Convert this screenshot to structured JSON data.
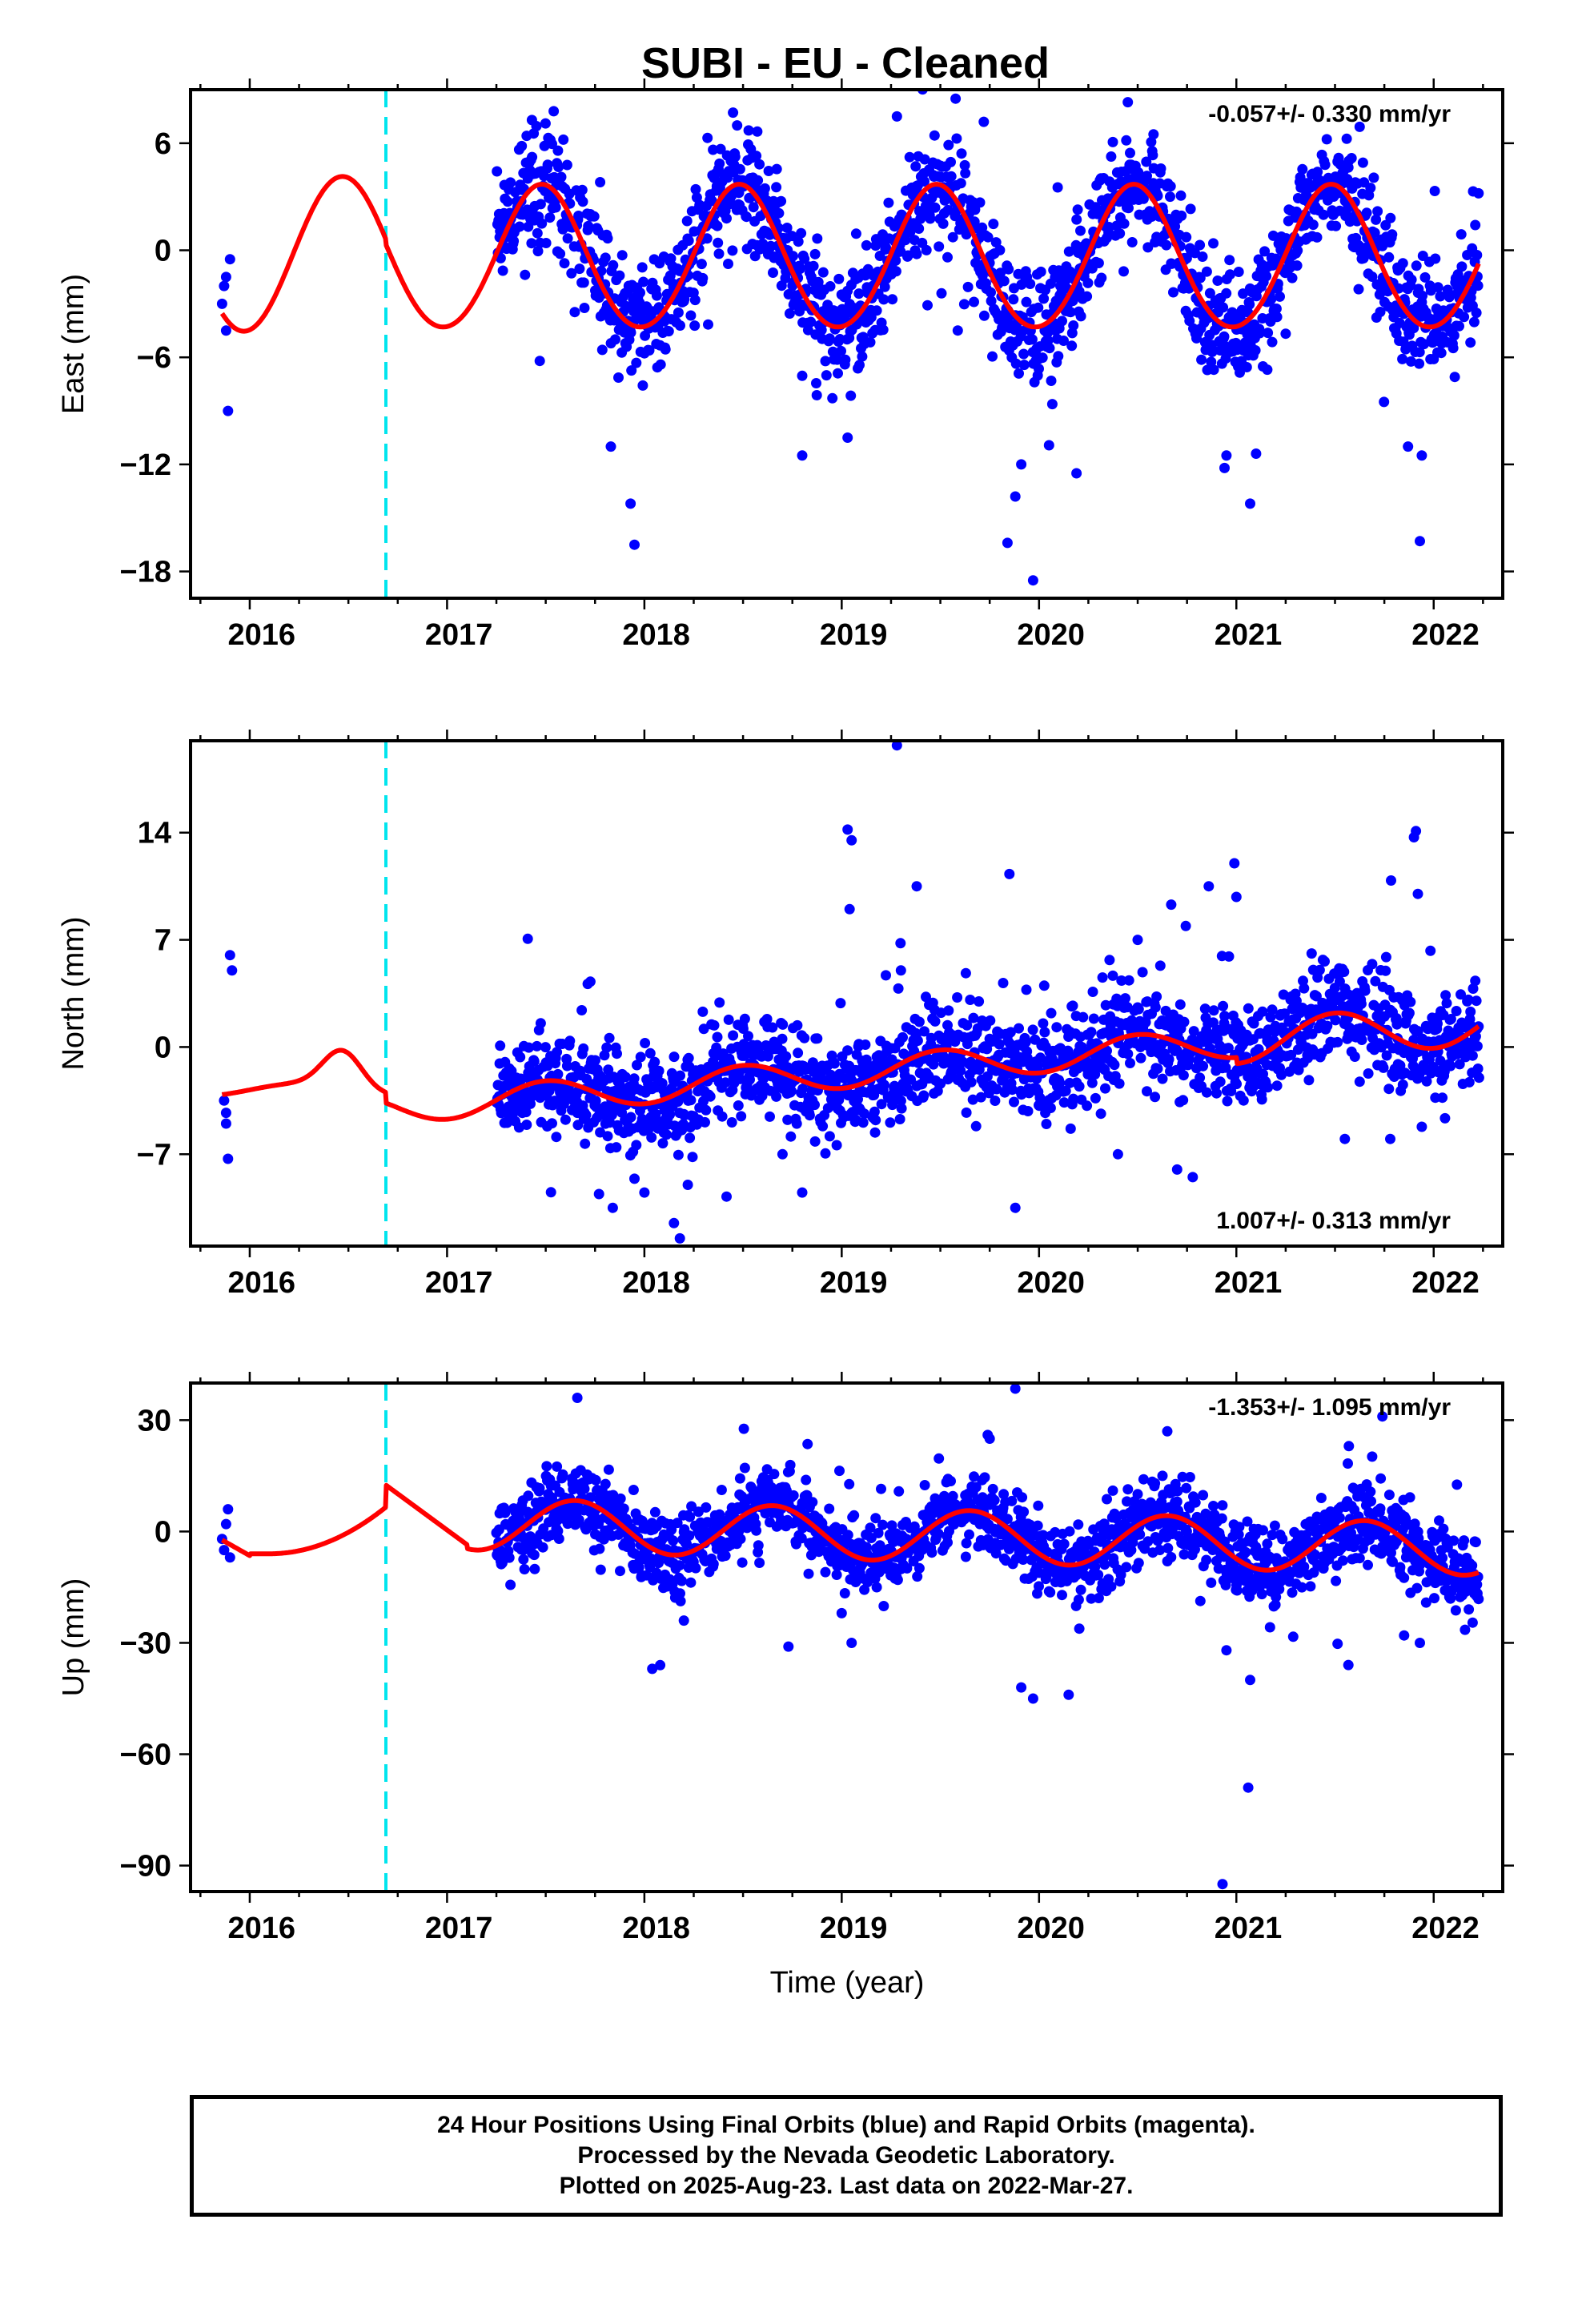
{
  "title": "SUBI  - EU - Cleaned",
  "xlabel": "Time (year)",
  "caption": [
    "24 Hour Positions Using Final Orbits (blue) and Rapid Orbits (magenta).",
    "Processed by the Nevada Geodetic Laboratory.",
    "Plotted on 2025-Aug-23. Last data on 2022-Mar-27."
  ],
  "colors": {
    "points": "#0000ff",
    "model": "#ff0000",
    "event": "#00e5ee",
    "frame": "#000000"
  },
  "chart_data": [
    {
      "type": "scatter",
      "panel": "east",
      "ylabel": "East (mm)",
      "rate_text": "-0.057+/- 0.330 mm/yr",
      "rate_placement": "top-right",
      "xlim": [
        2015.7,
        2022.35
      ],
      "ylim": [
        -19.5,
        9.0
      ],
      "xticks": [
        "2016",
        "2017",
        "2018",
        "2019",
        "2020",
        "2021",
        "2022"
      ],
      "yticks": [
        6,
        0,
        -6,
        -12,
        -18
      ],
      "ytick_labels": [
        "6",
        "0",
        "−6",
        "−12",
        "−18"
      ],
      "event_line_x": 2016.69,
      "data_start": 2017.25,
      "data_end": 2022.23,
      "model": {
        "offset": -0.5,
        "annual_amp": 4.0,
        "annual_phase_peak": 2017.48,
        "pre_amp": 5.1,
        "pre_peak": 2016.47,
        "noise_sd": 1.6
      },
      "points": [
        [
          2015.86,
          -3.0
        ],
        [
          2015.87,
          -2.0
        ],
        [
          2015.88,
          -4.5
        ],
        [
          2015.89,
          -9.0
        ],
        [
          2015.9,
          -0.5
        ],
        [
          2015.88,
          -1.5
        ],
        [
          2017.83,
          -11.0
        ],
        [
          2017.93,
          -14.2
        ],
        [
          2017.95,
          -16.5
        ],
        [
          2018.8,
          -11.5
        ],
        [
          2019.03,
          -10.5
        ],
        [
          2019.28,
          7.5
        ],
        [
          2019.72,
          7.2
        ],
        [
          2019.84,
          -16.4
        ],
        [
          2019.88,
          -13.8
        ],
        [
          2019.91,
          -12.0
        ],
        [
          2019.97,
          -18.5
        ],
        [
          2020.19,
          -12.5
        ],
        [
          2020.45,
          8.3
        ],
        [
          2020.58,
          6.5
        ],
        [
          2020.94,
          -12.2
        ],
        [
          2020.95,
          -11.5
        ],
        [
          2021.07,
          -14.2
        ],
        [
          2021.1,
          -11.4
        ],
        [
          2021.87,
          -11.0
        ],
        [
          2021.93,
          -16.3
        ],
        [
          2021.94,
          -11.5
        ],
        [
          2022.2,
          3.3
        ],
        [
          2017.43,
          7.3
        ],
        [
          2018.32,
          6.3
        ],
        [
          2018.47,
          7.0
        ],
        [
          2017.47,
          -6.2
        ]
      ]
    },
    {
      "type": "scatter",
      "panel": "north",
      "ylabel": "North (mm)",
      "rate_text": "1.007+/- 0.313 mm/yr",
      "rate_placement": "bottom-right",
      "xlim": [
        2015.7,
        2022.35
      ],
      "ylim": [
        -13.0,
        20.0
      ],
      "xticks": [
        "2016",
        "2017",
        "2018",
        "2019",
        "2020",
        "2021",
        "2022"
      ],
      "yticks": [
        14,
        7,
        0,
        -7
      ],
      "ytick_labels": [
        "14",
        "7",
        "0",
        "−7"
      ],
      "event_line_x": 2016.69,
      "data_start": 2017.25,
      "data_end": 2022.23,
      "model": {
        "rate": 1.007,
        "base_at_2019": -1.5,
        "annual_amp": 1.0,
        "annual_phase_peak": 2017.5,
        "pre_amp": 2.0,
        "pre_peak": 2016.47,
        "pre_base": -2.8,
        "noise_sd": 1.6
      },
      "points": [
        [
          2015.87,
          -3.5
        ],
        [
          2015.88,
          -5.0
        ],
        [
          2015.89,
          -7.3
        ],
        [
          2015.9,
          6.0
        ],
        [
          2015.91,
          5.0
        ],
        [
          2015.88,
          -4.3
        ],
        [
          2017.77,
          -9.6
        ],
        [
          2017.84,
          -10.5
        ],
        [
          2017.95,
          -8.6
        ],
        [
          2018.0,
          -9.5
        ],
        [
          2018.15,
          -11.5
        ],
        [
          2018.18,
          -12.5
        ],
        [
          2018.22,
          -9.0
        ],
        [
          2018.7,
          -7.0
        ],
        [
          2018.8,
          -9.5
        ],
        [
          2019.03,
          14.2
        ],
        [
          2019.05,
          13.5
        ],
        [
          2019.04,
          9.0
        ],
        [
          2019.28,
          19.7
        ],
        [
          2019.38,
          10.5
        ],
        [
          2019.85,
          11.3
        ],
        [
          2019.88,
          -10.5
        ],
        [
          2020.5,
          7.0
        ],
        [
          2020.67,
          9.3
        ],
        [
          2020.86,
          10.5
        ],
        [
          2020.99,
          12.0
        ],
        [
          2021.0,
          9.8
        ],
        [
          2021.55,
          -6.0
        ],
        [
          2021.78,
          -6.0
        ],
        [
          2021.9,
          13.7
        ],
        [
          2021.91,
          14.1
        ],
        [
          2021.92,
          10.0
        ],
        [
          2022.23,
          -2.0
        ],
        [
          2019.3,
          5.0
        ],
        [
          2020.4,
          -7.0
        ],
        [
          2020.7,
          -8.0
        ]
      ]
    },
    {
      "type": "scatter",
      "panel": "up",
      "ylabel": "Up (mm)",
      "rate_text": "-1.353+/- 1.095 mm/yr",
      "rate_placement": "top-right",
      "xlim": [
        2015.7,
        2022.35
      ],
      "ylim": [
        -97,
        40
      ],
      "xticks": [
        "2016",
        "2017",
        "2018",
        "2019",
        "2020",
        "2021",
        "2022"
      ],
      "yticks": [
        30,
        0,
        -30,
        -60,
        -90
      ],
      "ytick_labels": [
        "30",
        "0",
        "−30",
        "−60",
        "−90"
      ],
      "event_line_x": 2016.69,
      "data_start": 2017.25,
      "data_end": 2022.23,
      "model": {
        "rate": -1.353,
        "base_at_2019": 2.5,
        "annual_amp": 7.0,
        "annual_phase_peak": 2017.65,
        "pre_jump": 12.5,
        "noise_sd": 5.0
      },
      "points": [
        [
          2015.86,
          -2.0
        ],
        [
          2015.87,
          -5.0
        ],
        [
          2015.89,
          6.0
        ],
        [
          2015.9,
          -7.0
        ],
        [
          2015.88,
          2.0
        ],
        [
          2017.66,
          36.0
        ],
        [
          2018.04,
          -37.0
        ],
        [
          2018.08,
          -36.0
        ],
        [
          2018.73,
          -31.0
        ],
        [
          2019.05,
          -30.0
        ],
        [
          2019.74,
          26.0
        ],
        [
          2019.75,
          25.0
        ],
        [
          2019.88,
          38.5
        ],
        [
          2019.91,
          -42.0
        ],
        [
          2019.97,
          -45.0
        ],
        [
          2020.15,
          -44.0
        ],
        [
          2020.65,
          27.0
        ],
        [
          2020.93,
          -95.0
        ],
        [
          2020.95,
          -32.0
        ],
        [
          2021.06,
          -69.0
        ],
        [
          2021.07,
          -40.0
        ],
        [
          2021.57,
          23.0
        ],
        [
          2021.74,
          31.0
        ],
        [
          2021.93,
          -30.0
        ],
        [
          2021.85,
          -28.0
        ],
        [
          2018.2,
          -24.0
        ],
        [
          2019.0,
          -22.0
        ]
      ]
    }
  ]
}
